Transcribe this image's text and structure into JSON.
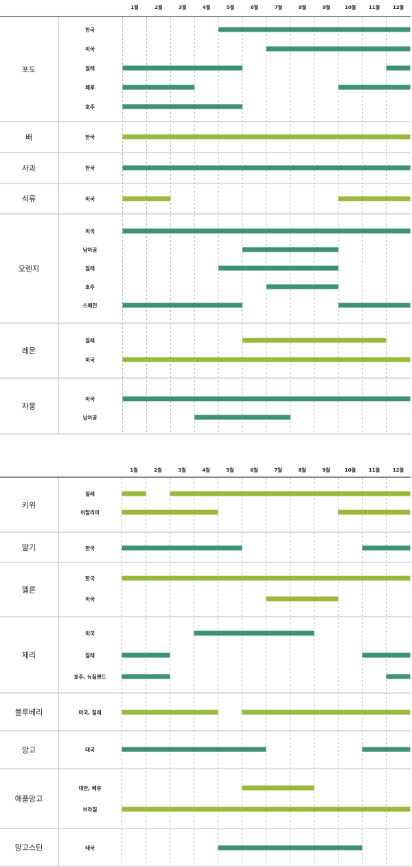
{
  "chart_data": [
    {
      "type": "bar",
      "months": [
        "1월",
        "2월",
        "3월",
        "4월",
        "5월",
        "6월",
        "7월",
        "8월",
        "9월",
        "10월",
        "11월",
        "12월"
      ],
      "colors": {
        "dark_green": "#3f9270",
        "light_green": "#9ab93b",
        "divider": "#bbbbbb",
        "axis": "#444444",
        "grid": "#999999"
      },
      "groups": [
        {
          "fruit": "포도",
          "rows": [
            {
              "country": "한국",
              "color": "dark_green",
              "spans": [
                [
                  5,
                  12
                ]
              ]
            },
            {
              "country": "미국",
              "color": "dark_green",
              "spans": [
                [
                  7,
                  12
                ]
              ]
            },
            {
              "country": "칠레",
              "color": "dark_green",
              "spans": [
                [
                  1,
                  5
                ],
                [
                  12,
                  12
                ]
              ]
            },
            {
              "country": "페루",
              "color": "dark_green",
              "spans": [
                [
                  1,
                  3
                ],
                [
                  10,
                  12
                ]
              ]
            },
            {
              "country": "호주",
              "color": "dark_green",
              "spans": [
                [
                  1,
                  5
                ]
              ]
            }
          ]
        },
        {
          "fruit": "배",
          "rows": [
            {
              "country": "한국",
              "color": "light_green",
              "spans": [
                [
                  1,
                  12
                ]
              ]
            }
          ]
        },
        {
          "fruit": "사과",
          "rows": [
            {
              "country": "한국",
              "color": "dark_green",
              "spans": [
                [
                  1,
                  12
                ]
              ]
            }
          ]
        },
        {
          "fruit": "석류",
          "rows": [
            {
              "country": "미국",
              "color": "light_green",
              "spans": [
                [
                  1,
                  2
                ],
                [
                  10,
                  12
                ]
              ]
            }
          ]
        },
        {
          "fruit": "오렌지",
          "rows": [
            {
              "country": "미국",
              "color": "dark_green",
              "spans": [
                [
                  1,
                  12
                ]
              ]
            },
            {
              "country": "남아공",
              "color": "dark_green",
              "spans": [
                [
                  6,
                  9
                ]
              ]
            },
            {
              "country": "칠레",
              "color": "dark_green",
              "spans": [
                [
                  5,
                  9
                ]
              ]
            },
            {
              "country": "호주",
              "color": "dark_green",
              "spans": [
                [
                  7,
                  9
                ]
              ]
            },
            {
              "country": "스페인",
              "color": "dark_green",
              "spans": [
                [
                  1,
                  5
                ],
                [
                  10,
                  12
                ]
              ]
            }
          ]
        },
        {
          "fruit": "레몬",
          "rows": [
            {
              "country": "칠레",
              "color": "light_green",
              "spans": [
                [
                  6,
                  11
                ]
              ]
            },
            {
              "country": "미국",
              "color": "light_green",
              "spans": [
                [
                  1,
                  12
                ]
              ]
            }
          ]
        },
        {
          "fruit": "자몽",
          "rows": [
            {
              "country": "미국",
              "color": "dark_green",
              "spans": [
                [
                  1,
                  12
                ]
              ]
            },
            {
              "country": "남아공",
              "color": "dark_green",
              "spans": [
                [
                  4,
                  7
                ]
              ]
            }
          ]
        }
      ]
    },
    {
      "type": "bar",
      "months": [
        "1월",
        "2월",
        "3월",
        "4월",
        "5월",
        "6월",
        "7월",
        "8월",
        "9월",
        "10월",
        "11월",
        "12월"
      ],
      "colors": {
        "dark_green": "#3f9270",
        "light_green": "#9ab93b",
        "divider": "#bbbbbb",
        "axis": "#444444",
        "grid": "#999999"
      },
      "groups": [
        {
          "fruit": "키위",
          "rows": [
            {
              "country": "칠레",
              "color": "light_green",
              "spans": [
                [
                  1,
                  1
                ],
                [
                  3,
                  12
                ]
              ]
            },
            {
              "country": "이탈리아",
              "color": "light_green",
              "spans": [
                [
                  1,
                  4
                ],
                [
                  10,
                  12
                ]
              ]
            }
          ]
        },
        {
          "fruit": "딸기",
          "rows": [
            {
              "country": "한국",
              "color": "dark_green",
              "spans": [
                [
                  1,
                  5
                ],
                [
                  11,
                  12
                ]
              ]
            }
          ]
        },
        {
          "fruit": "멜론",
          "rows": [
            {
              "country": "한국",
              "color": "light_green",
              "spans": [
                [
                  1,
                  12
                ]
              ]
            },
            {
              "country": "미국",
              "color": "light_green",
              "spans": [
                [
                  7,
                  9
                ]
              ]
            }
          ]
        },
        {
          "fruit": "체리",
          "rows": [
            {
              "country": "미국",
              "color": "dark_green",
              "spans": [
                [
                  4,
                  8
                ]
              ]
            },
            {
              "country": "칠레",
              "color": "dark_green",
              "spans": [
                [
                  1,
                  2
                ],
                [
                  11,
                  12
                ]
              ]
            },
            {
              "country": "호주, 뉴질랜드",
              "color": "dark_green",
              "spans": [
                [
                  1,
                  2
                ],
                [
                  12,
                  12
                ]
              ]
            }
          ]
        },
        {
          "fruit": "블루베리",
          "rows": [
            {
              "country": "미국, 칠레",
              "color": "light_green",
              "spans": [
                [
                  1,
                  4
                ],
                [
                  6,
                  12
                ]
              ]
            }
          ]
        },
        {
          "fruit": "망고",
          "rows": [
            {
              "country": "태국",
              "color": "dark_green",
              "spans": [
                [
                  1,
                  6
                ],
                [
                  11,
                  12
                ]
              ]
            }
          ]
        },
        {
          "fruit": "애플망고",
          "rows": [
            {
              "country": "대만, 페루",
              "color": "light_green",
              "spans": [
                [
                  6,
                  8
                ]
              ]
            },
            {
              "country": "브라질",
              "color": "light_green",
              "spans": [
                [
                  1,
                  12
                ]
              ]
            }
          ]
        },
        {
          "fruit": "망고스틴",
          "rows": [
            {
              "country": "태국",
              "color": "dark_green",
              "spans": [
                [
                  5,
                  10
                ]
              ]
            }
          ]
        }
      ]
    }
  ]
}
